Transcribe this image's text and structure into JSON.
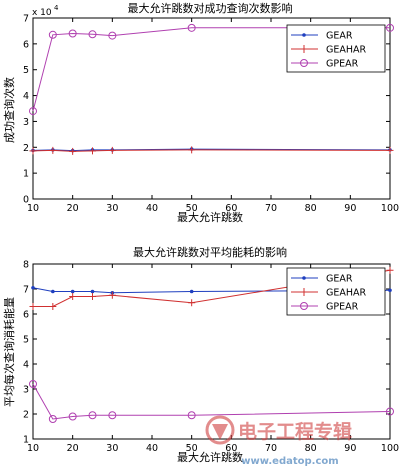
{
  "chart_data": [
    {
      "type": "line",
      "title": "最大允许跳数对成功查询次数影响",
      "xlabel": "最大允许跳数",
      "ylabel": "成功查询次数",
      "exponent_label": "x 10",
      "exponent_power": "4",
      "xlim": [
        10,
        100
      ],
      "ylim": [
        0,
        7
      ],
      "xticks": [
        10,
        20,
        30,
        40,
        50,
        60,
        70,
        80,
        90,
        100
      ],
      "yticks": [
        0,
        1,
        2,
        3,
        4,
        5,
        6,
        7
      ],
      "legend_position": "top-right",
      "series": [
        {
          "name": "GEAR",
          "color": "#1f3fbf",
          "marker": "dot",
          "x": [
            10,
            15,
            20,
            25,
            30,
            50,
            100
          ],
          "y": [
            1.88,
            1.9,
            1.87,
            1.9,
            1.9,
            1.93,
            1.9
          ]
        },
        {
          "name": "GEAHAR",
          "color": "#d03030",
          "marker": "plus",
          "x": [
            10,
            15,
            20,
            25,
            30,
            50,
            100
          ],
          "y": [
            1.86,
            1.88,
            1.84,
            1.86,
            1.88,
            1.9,
            1.88
          ]
        },
        {
          "name": "GPEAR",
          "color": "#b040b0",
          "marker": "circle",
          "x": [
            10,
            15,
            20,
            25,
            30,
            50,
            100
          ],
          "y": [
            3.4,
            6.35,
            6.4,
            6.37,
            6.32,
            6.62,
            6.62
          ]
        }
      ]
    },
    {
      "type": "line",
      "title": "最大允许跳数对平均能耗的影响",
      "xlabel": "最大允许跳数",
      "ylabel": "平均每次查询消耗能量",
      "xlim": [
        10,
        100
      ],
      "ylim": [
        1,
        8
      ],
      "xticks": [
        10,
        20,
        30,
        40,
        50,
        60,
        70,
        80,
        90,
        100
      ],
      "yticks": [
        1,
        2,
        3,
        4,
        5,
        6,
        7,
        8
      ],
      "legend_position": "top-right",
      "series": [
        {
          "name": "GEAR",
          "color": "#1f3fbf",
          "marker": "dot",
          "x": [
            10,
            15,
            20,
            25,
            30,
            50,
            100
          ],
          "y": [
            7.05,
            6.9,
            6.9,
            6.9,
            6.85,
            6.9,
            6.95
          ]
        },
        {
          "name": "GEAHAR",
          "color": "#d03030",
          "marker": "plus",
          "x": [
            10,
            15,
            20,
            25,
            30,
            50,
            100
          ],
          "y": [
            6.3,
            6.3,
            6.7,
            6.7,
            6.75,
            6.45,
            7.75
          ]
        },
        {
          "name": "GPEAR",
          "color": "#b040b0",
          "marker": "circle",
          "x": [
            10,
            15,
            20,
            25,
            30,
            50,
            100
          ],
          "y": [
            3.2,
            1.8,
            1.9,
            1.95,
            1.95,
            1.95,
            2.1
          ]
        }
      ]
    }
  ],
  "watermark": {
    "brand": "电子工程专辑",
    "site": "www.edatop.com",
    "site_display": "www.edatop.com"
  }
}
